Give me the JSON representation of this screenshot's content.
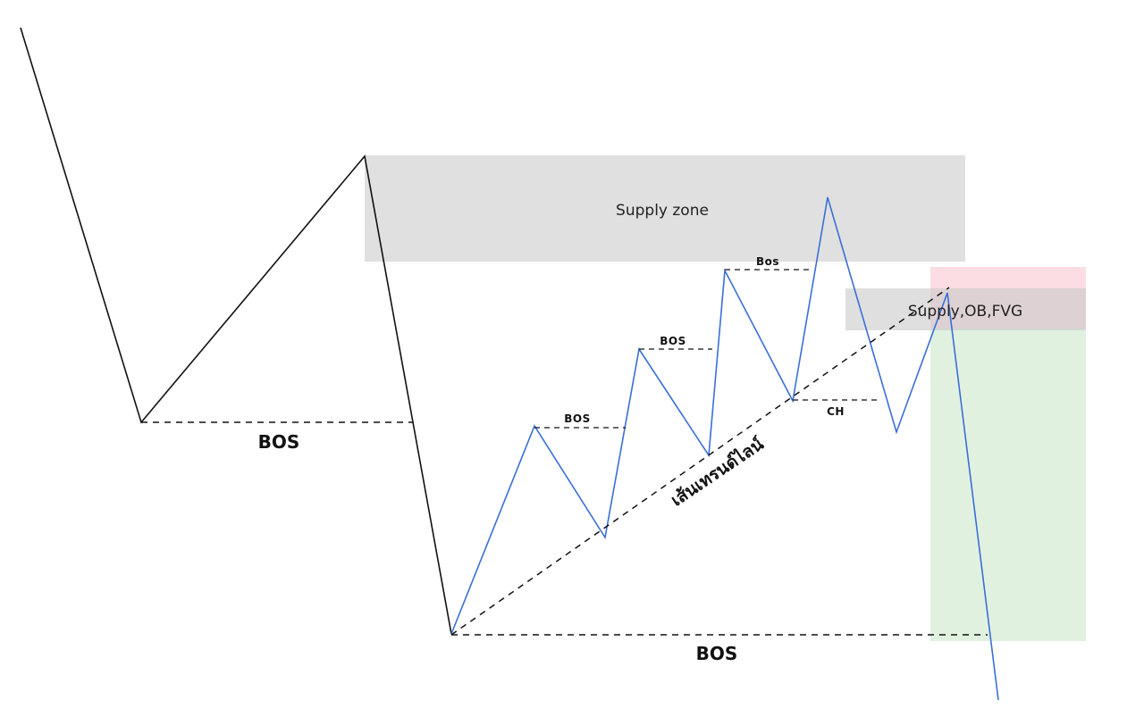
{
  "diagram": {
    "supply_zone_label": "Supply zone",
    "supply_ob_fvg_label": "Supply,OB,FVG",
    "bos_left_label": "BOS",
    "bos_bottom_label": "BOS",
    "bos_1_label": "BOS",
    "bos_2_label": "BOS",
    "bos_3_label": "Bos",
    "ch_label": "CH",
    "trendline_label": "เส้นเทรนด์ไลน์"
  },
  "colors": {
    "background": "#ffffff",
    "price_line_black": "#111111",
    "price_line_blue": "#3a6fd8",
    "supply_zone_fill": "#e0e0e0",
    "stop_zone_fill": "#fbdde3",
    "target_zone_fill": "#e1f1e0",
    "dashed_line": "#111111"
  }
}
